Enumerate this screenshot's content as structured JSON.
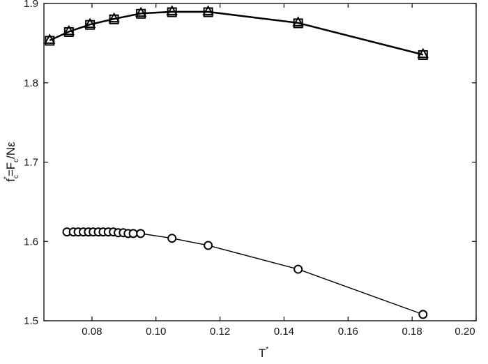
{
  "chart_data": {
    "type": "line",
    "xlabel": [
      "T",
      "*"
    ],
    "ylabel": [
      "f",
      "c",
      "*",
      "=F",
      "c",
      "/Nε"
    ],
    "xlim": [
      0.065,
      0.2
    ],
    "ylim": [
      1.5,
      1.9
    ],
    "xticks": [
      0.08,
      {
        "value": 0.1,
        "label": "0.10"
      },
      0.12,
      0.14,
      0.16,
      0.18,
      {
        "value": 0.2,
        "label": "0.20"
      }
    ],
    "yticks": [
      1.5,
      1.6,
      1.7,
      1.8,
      1.9
    ],
    "series": [
      {
        "marker": "square",
        "color": "#000000",
        "x": [
          0.0668,
          0.0728,
          0.0794,
          0.0869,
          0.0953,
          0.105,
          0.1163,
          0.1444,
          0.1834
        ],
        "values": [
          1.853,
          1.864,
          1.873,
          1.88,
          1.887,
          1.889,
          1.889,
          1.875,
          1.835
        ]
      },
      {
        "marker": "triangle",
        "color": "#000000",
        "x": [
          0.0668,
          0.0728,
          0.0794,
          0.0869,
          0.0953,
          0.105,
          0.1163,
          0.1444,
          0.1834
        ],
        "values": [
          1.854,
          1.865,
          1.874,
          1.881,
          1.888,
          1.89,
          1.89,
          1.876,
          1.836
        ]
      },
      {
        "marker": "circle",
        "color": "#000000",
        "x": [
          0.0722,
          0.0742,
          0.0757,
          0.0773,
          0.0789,
          0.0804,
          0.082,
          0.0835,
          0.0851,
          0.0867,
          0.0882,
          0.0898,
          0.0913,
          0.0929,
          0.0952,
          0.105,
          0.1163,
          0.1444,
          0.1834
        ],
        "values": [
          1.612,
          1.612,
          1.612,
          1.612,
          1.612,
          1.612,
          1.612,
          1.612,
          1.612,
          1.612,
          1.611,
          1.611,
          1.61,
          1.61,
          1.61,
          1.604,
          1.595,
          1.565,
          1.508
        ]
      }
    ]
  }
}
